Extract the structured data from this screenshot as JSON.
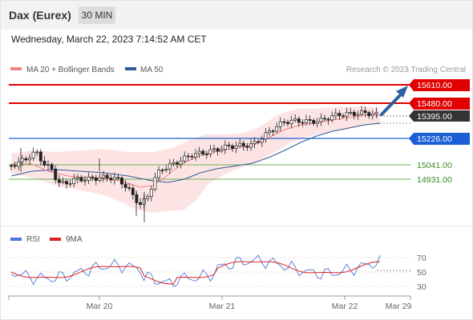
{
  "header": {
    "instrument": "Dax (Eurex)",
    "timeframe": "30 MIN",
    "datetime": "Wednesday, March 22, 2023 7:14:52 AM CET"
  },
  "colors": {
    "resistance": "#e00000",
    "support": "#1b5fd6",
    "target_support": "#6ab04c",
    "last_price_label": "#333333",
    "ma20": "#f08080",
    "ma50": "#2f5a95",
    "bollinger_fill": "#fde3e3",
    "rsi": "#4a78d6",
    "rsi_ma": "#e02020",
    "arrow": "#2e5fa3",
    "candle_up": "#ffffff",
    "candle_down": "#222222"
  },
  "legend": {
    "ma20": "MA 20 + Bollinger Bands",
    "ma50": "MA 50",
    "copyright": "Research © 2023 Trading Central"
  },
  "levels": {
    "r2": "15610.00",
    "r1": "15480.00",
    "last": "15395.00",
    "s1": "15226.00",
    "s2": "15041.00",
    "s3": "14931.00"
  },
  "rsi_legend": {
    "rsi": "RSI",
    "ma": "9MA"
  },
  "rsi_axis": [
    "70",
    "50",
    "30"
  ],
  "time_axis": [
    "Mar 20",
    "Mar 21",
    "Mar 22",
    "Mar 29"
  ],
  "chart_data": {
    "type": "candlestick",
    "price_levels": [
      15610,
      15480,
      15395,
      15226,
      15041,
      14931
    ],
    "rsi_levels": [
      70,
      50,
      30
    ],
    "x_ticks": [
      "Mar 20",
      "Mar 21",
      "Mar 22",
      "Mar 29"
    ],
    "bias": "bullish"
  }
}
